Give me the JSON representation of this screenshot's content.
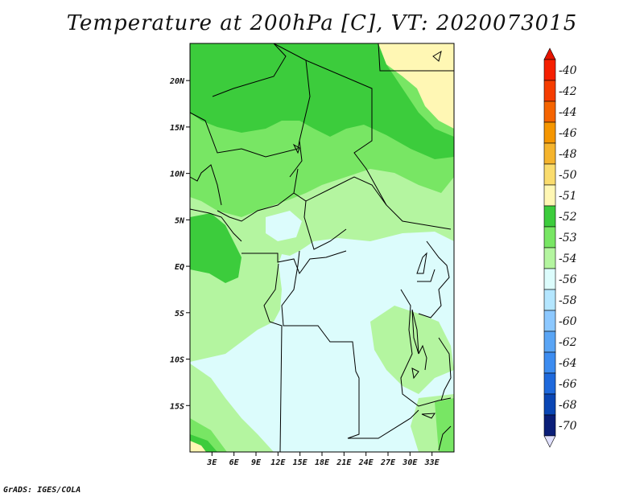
{
  "title": "Temperature at 200hPa [C], VT: 2020073015",
  "credit": "GrADS: IGES/COLA",
  "map": {
    "lon_range": [
      0,
      36
    ],
    "lat_range": [
      -20,
      24
    ],
    "lat_ticks": [
      {
        "lat": 20,
        "label": "20N"
      },
      {
        "lat": 15,
        "label": "15N"
      },
      {
        "lat": 10,
        "label": "10N"
      },
      {
        "lat": 5,
        "label": "5N"
      },
      {
        "lat": 0,
        "label": "EQ"
      },
      {
        "lat": -5,
        "label": "5S"
      },
      {
        "lat": -10,
        "label": "10S"
      },
      {
        "lat": -15,
        "label": "15S"
      }
    ],
    "lon_ticks": [
      {
        "lon": 3,
        "label": "3E"
      },
      {
        "lon": 6,
        "label": "6E"
      },
      {
        "lon": 9,
        "label": "9E"
      },
      {
        "lon": 12,
        "label": "12E"
      },
      {
        "lon": 15,
        "label": "15E"
      },
      {
        "lon": 18,
        "label": "18E"
      },
      {
        "lon": 21,
        "label": "21E"
      },
      {
        "lon": 24,
        "label": "24E"
      },
      {
        "lon": 27,
        "label": "27E"
      },
      {
        "lon": 30,
        "label": "30E"
      },
      {
        "lon": 33,
        "label": "33E"
      }
    ]
  },
  "colorbar": {
    "levels": [
      {
        "label": "-40",
        "color": "#f51f00"
      },
      {
        "label": "-42",
        "color": "#f53c00"
      },
      {
        "label": "-44",
        "color": "#f56400"
      },
      {
        "label": "-46",
        "color": "#f59600"
      },
      {
        "label": "-48",
        "color": "#f5b42d"
      },
      {
        "label": "-50",
        "color": "#fadc6e"
      },
      {
        "label": "-51",
        "color": "#fff7b4"
      },
      {
        "label": "-52",
        "color": "#3ccc3c"
      },
      {
        "label": "-53",
        "color": "#78e664"
      },
      {
        "label": "-54",
        "color": "#b4f5a0"
      },
      {
        "label": "-56",
        "color": "#dcfcfc"
      },
      {
        "label": "-58",
        "color": "#b4e6ff"
      },
      {
        "label": "-60",
        "color": "#8cc8ff"
      },
      {
        "label": "-62",
        "color": "#5aa5f5"
      },
      {
        "label": "-64",
        "color": "#3c8cf0"
      },
      {
        "label": "-66",
        "color": "#1e69dc"
      },
      {
        "label": "-68",
        "color": "#0a46b4"
      },
      {
        "label": "-70",
        "color": "#0a1e78"
      }
    ],
    "top_color": "#e61400",
    "bottom_color": "#e1e1ff"
  }
}
